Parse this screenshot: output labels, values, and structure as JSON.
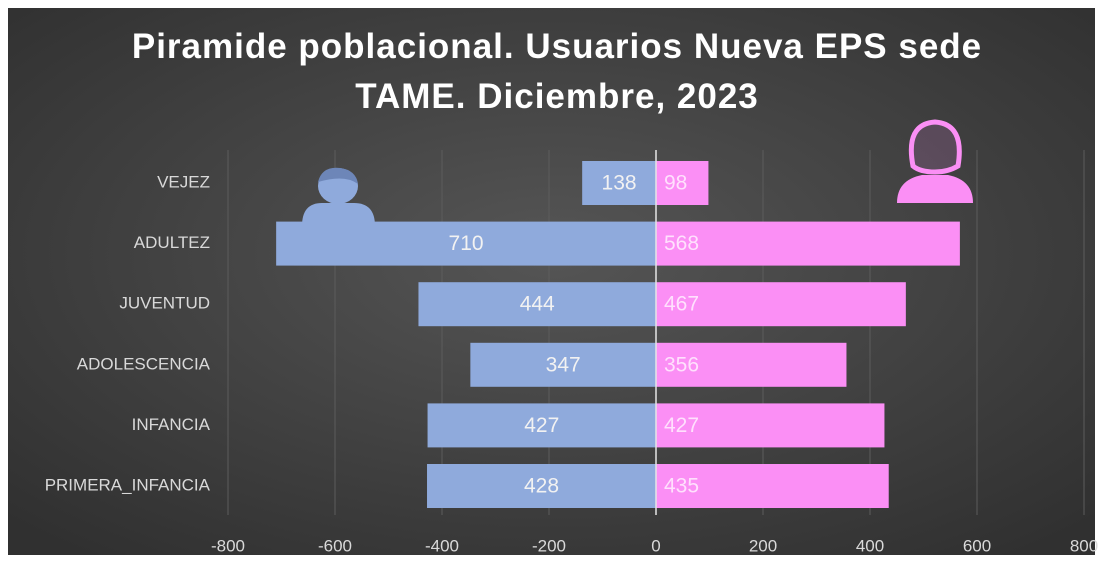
{
  "chart_data": {
    "type": "bar",
    "orientation": "horizontal",
    "stacked": true,
    "title": "Piramide poblacional. Usuarios Nueva EPS sede TAME. Diciembre, 2023",
    "categories": [
      "VEJEZ",
      "ADULTEZ",
      "JUVENTUD",
      "ADOLESCENCIA",
      "INFANCIA",
      "PRIMERA_INFANCIA"
    ],
    "series": [
      {
        "color": "#8faadc",
        "values": [
          -138,
          -710,
          -444,
          -347,
          -427,
          -428
        ],
        "value_labels": [
          "138",
          "710",
          "444",
          "347",
          "427",
          "428"
        ]
      },
      {
        "color": "#fb8ff5",
        "values": [
          98,
          568,
          467,
          356,
          427,
          435
        ]
      }
    ],
    "xlim": [
      -800,
      800
    ],
    "xticks": [
      -800,
      -600,
      -400,
      -200,
      0,
      200,
      400,
      600,
      800
    ],
    "grid": true
  }
}
